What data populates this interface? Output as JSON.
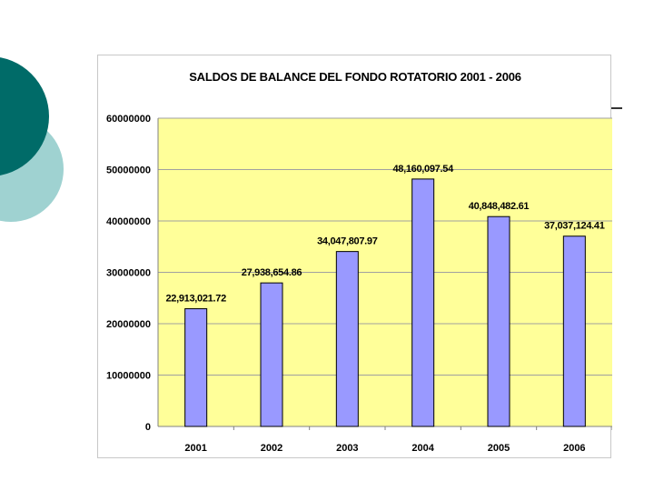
{
  "colors": {
    "circle_dark": "#006b68",
    "circle_light": "#9fd2d1",
    "plot_background": "#ffff99",
    "bar_fill": "#9999ff",
    "bar_stroke": "#000000",
    "gridline": "#a0a0a0"
  },
  "chart_data": {
    "type": "bar",
    "title": "SALDOS DE BALANCE DEL FONDO ROTATORIO 2001 - 2006",
    "xlabel": "",
    "ylabel": "",
    "categories": [
      "2001",
      "2002",
      "2003",
      "2004",
      "2005",
      "2006"
    ],
    "values": [
      22913021.72,
      27938654.86,
      34047807.97,
      48160097.54,
      40848482.61,
      37037124.41
    ],
    "value_labels": [
      "22,913,021.72",
      "27,938,654.86",
      "34,047,807.97",
      "48,160,097.54",
      "40,848,482.61",
      "37,037,124.41"
    ],
    "ylim": [
      0,
      60000000
    ],
    "yticks": [
      0,
      10000000,
      20000000,
      30000000,
      40000000,
      50000000,
      60000000
    ],
    "ytick_labels": [
      "0",
      "10000000",
      "20000000",
      "30000000",
      "40000000",
      "50000000",
      "60000000"
    ],
    "grid": true,
    "legend": "none"
  }
}
